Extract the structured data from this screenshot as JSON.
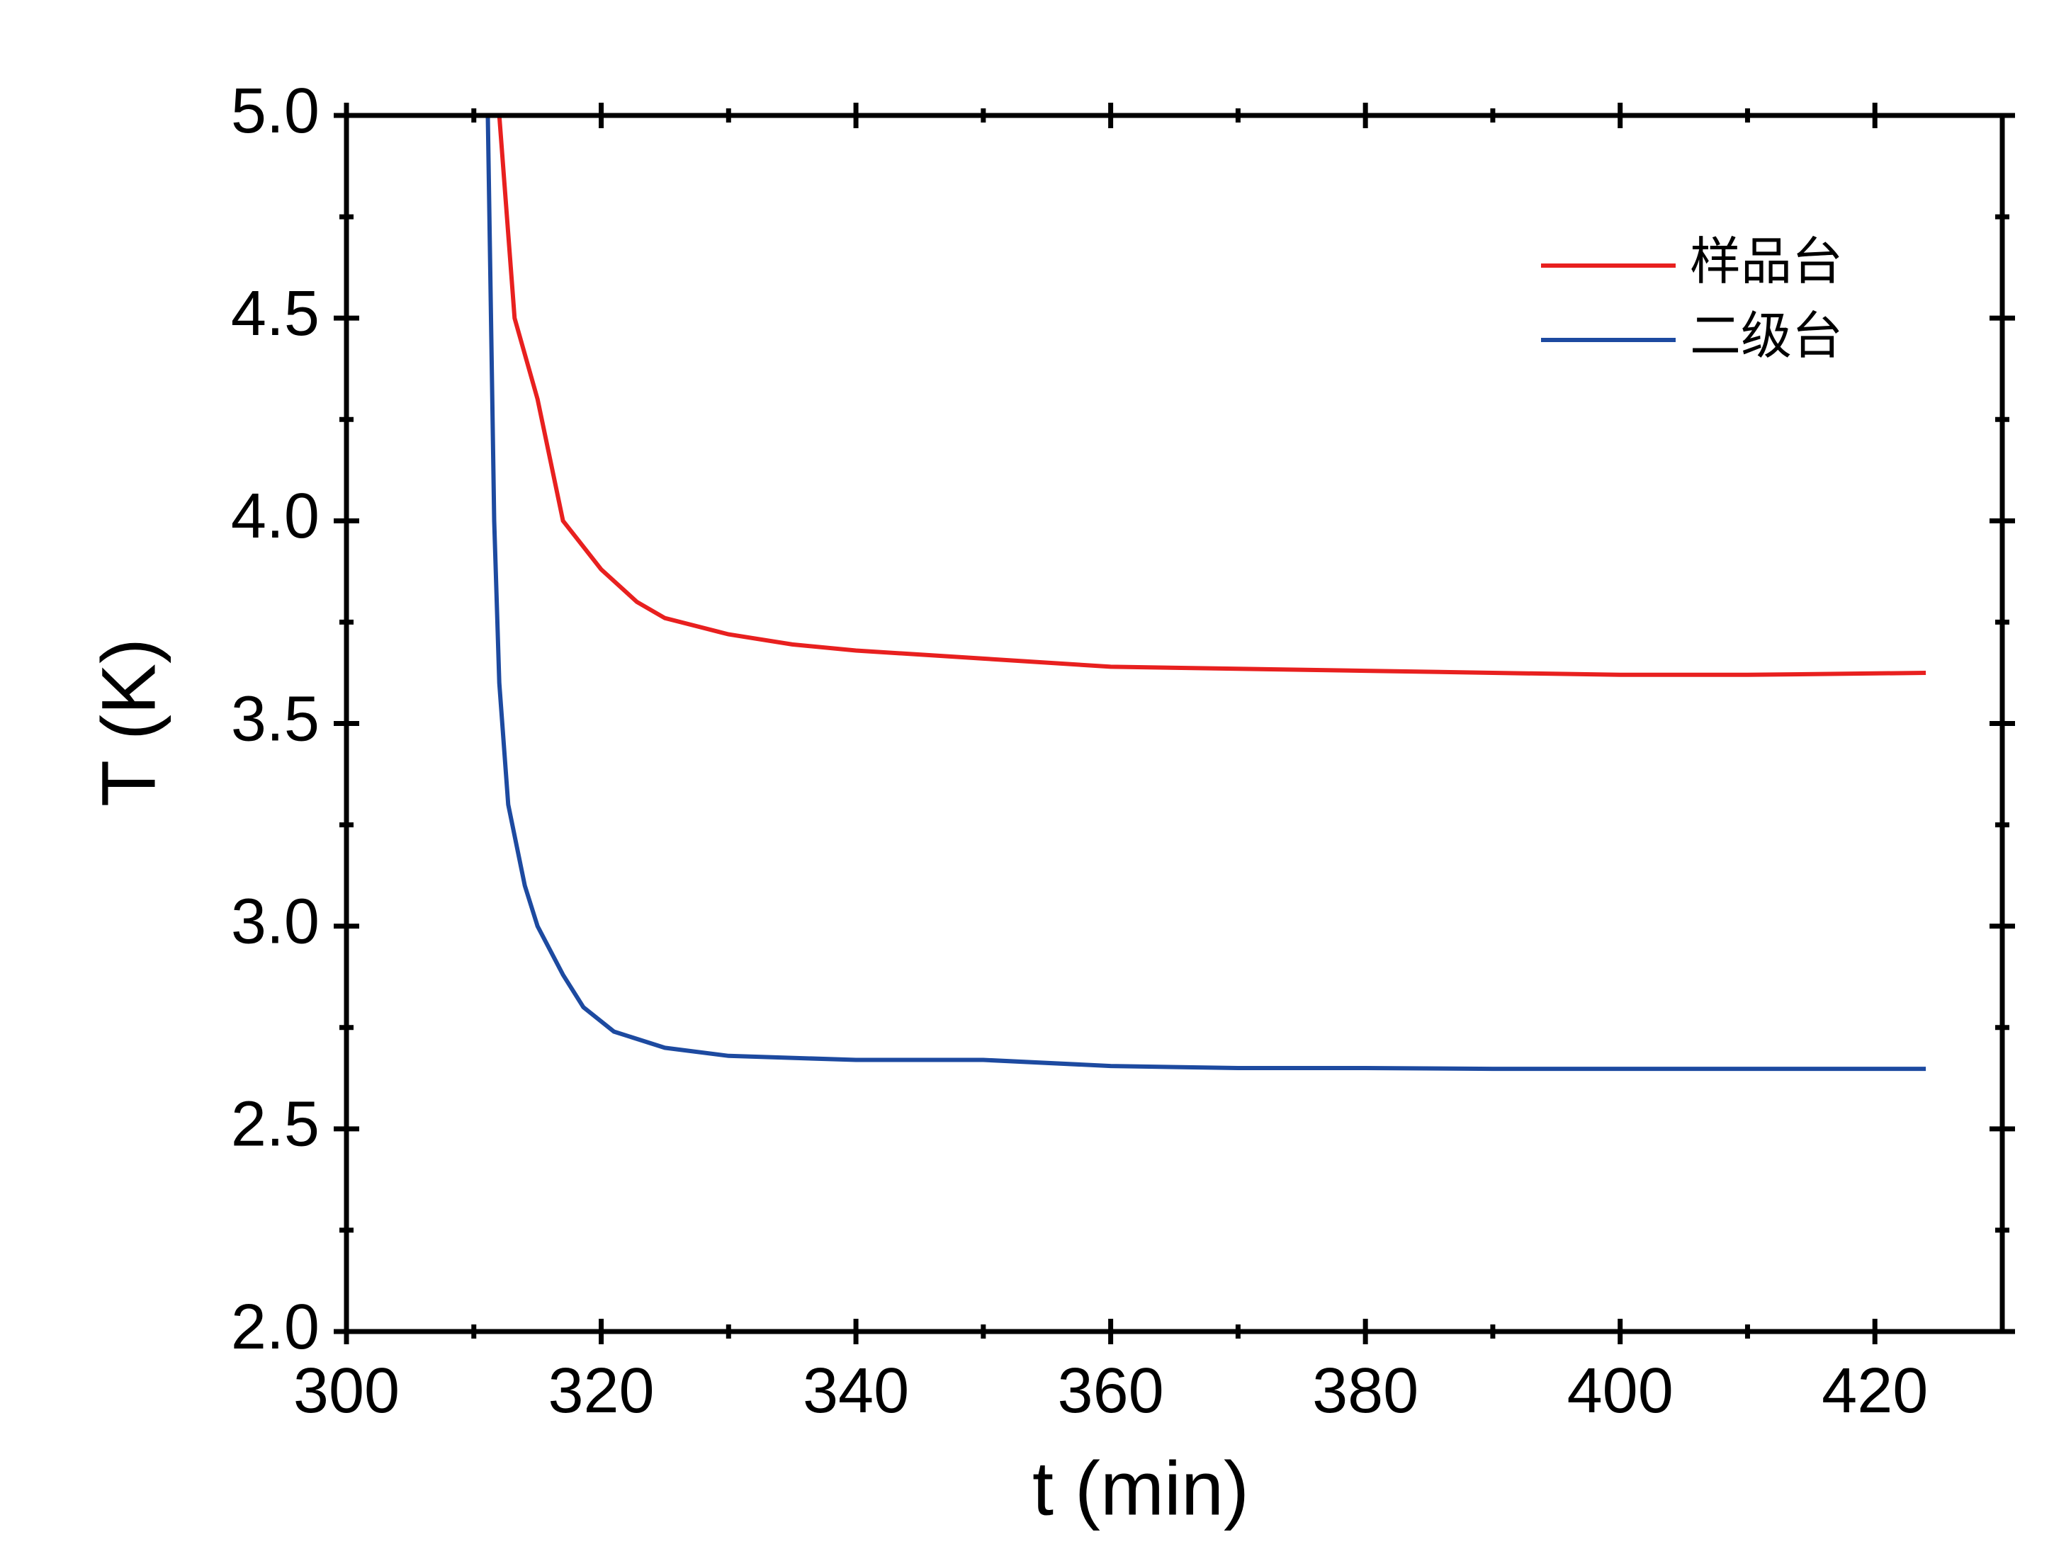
{
  "chart_data": {
    "type": "line",
    "xlabel": "t (min)",
    "ylabel": "T (K)",
    "xlim": [
      300,
      430
    ],
    "xticks": [
      300,
      320,
      340,
      360,
      380,
      400,
      420
    ],
    "ylim": [
      2.0,
      5.0
    ],
    "yticks": [
      {
        "value": 2.0,
        "label": "2.0"
      },
      {
        "value": 2.5,
        "label": "2.5"
      },
      {
        "value": 3.0,
        "label": "3.0"
      },
      {
        "value": 3.5,
        "label": "3.5"
      },
      {
        "value": 4.0,
        "label": "4.0"
      },
      {
        "value": 4.5,
        "label": "4.5"
      },
      {
        "value": 5.0,
        "label": "5.0"
      }
    ],
    "legend": "upper right",
    "series": [
      {
        "name": "样品台",
        "color": "#e8201f",
        "x": [
          312,
          313.2,
          315,
          317,
          319,
          320,
          322.8,
          325,
          330,
          335,
          340,
          350,
          360,
          370,
          380,
          390,
          400,
          410,
          424
        ],
        "values": [
          5.0,
          4.5,
          4.3,
          4.0,
          3.92,
          3.88,
          3.8,
          3.76,
          3.72,
          3.695,
          3.68,
          3.66,
          3.64,
          3.635,
          3.63,
          3.625,
          3.62,
          3.62,
          3.625
        ]
      },
      {
        "name": "二级台",
        "color": "#1d4aa0",
        "x": [
          311.1,
          311.3,
          311.6,
          312,
          312.7,
          314,
          315,
          317,
          318.6,
          321,
          325,
          330,
          340,
          350,
          360,
          370,
          380,
          390,
          400,
          410,
          424
        ],
        "values": [
          5.0,
          4.6,
          4.0,
          3.6,
          3.3,
          3.1,
          3.0,
          2.88,
          2.8,
          2.74,
          2.7,
          2.68,
          2.67,
          2.67,
          2.655,
          2.65,
          2.65,
          2.648,
          2.648,
          2.648,
          2.648
        ]
      }
    ]
  }
}
